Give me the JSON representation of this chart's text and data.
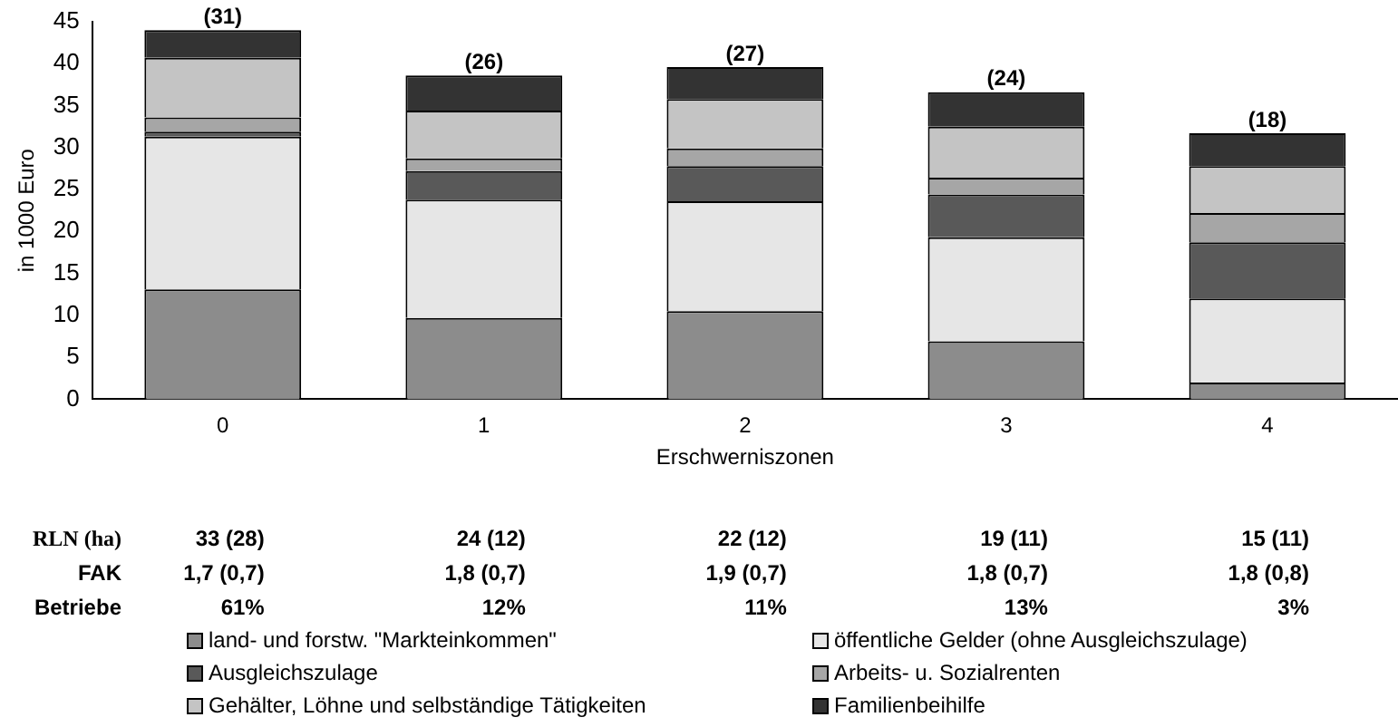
{
  "chart_data": {
    "type": "bar",
    "stacked": true,
    "xlabel": "Erschwerniszonen",
    "ylabel": "in 1000 Euro",
    "categories": [
      "0",
      "1",
      "2",
      "3",
      "4"
    ],
    "series": [
      {
        "name": "land- und forstw. \"Markteinkommen\"",
        "color": "#8c8c8c",
        "values": [
          13.1,
          9.7,
          10.5,
          6.9,
          2.0
        ]
      },
      {
        "name": "öffentliche Gelder (ohne Ausgleichszulage)",
        "color": "#e6e6e6",
        "values": [
          18.2,
          14.1,
          13.1,
          12.4,
          10.0
        ]
      },
      {
        "name": "Ausgleichszulage",
        "color": "#595959",
        "values": [
          0.6,
          3.4,
          4.2,
          5.1,
          6.7
        ]
      },
      {
        "name": "Arbeits- u. Sozialrenten",
        "color": "#a6a6a6",
        "values": [
          1.7,
          1.5,
          2.1,
          2.0,
          3.5
        ]
      },
      {
        "name": "Gehälter, Löhne und selbständige Tätigkeiten",
        "color": "#c4c4c4",
        "values": [
          7.1,
          5.7,
          5.9,
          6.1,
          5.6
        ]
      },
      {
        "name": "Familienbeihilfe",
        "color": "#333333",
        "values": [
          3.3,
          4.2,
          3.8,
          4.1,
          3.9
        ]
      }
    ],
    "ylim": [
      0,
      45
    ],
    "yticks": [
      0,
      5,
      10,
      15,
      20,
      25,
      30,
      35,
      40,
      45
    ],
    "grid": false,
    "legend": "bottom",
    "annotations": [
      {
        "text": "(31)",
        "x": "0",
        "y": 44.0
      },
      {
        "text": "(26)",
        "x": "1",
        "y": 38.6
      },
      {
        "text": "(27)",
        "x": "2",
        "y": 39.6
      },
      {
        "text": "(24)",
        "x": "3",
        "y": 36.6
      },
      {
        "text": "(18)",
        "x": "4",
        "y": 31.7
      },
      "RLN (ha)",
      "33 (28)",
      "24 (12)",
      "22 (12)",
      "19 (11)",
      "15 (11)",
      "FAK",
      "1,7 (0,7)",
      "1,8 (0,7)",
      "1,9 (0,7)",
      "1,8 (0,7)",
      "1,8 (0,8)",
      "Betriebe",
      "61%",
      "12%",
      "11%",
      "13%",
      "3%"
    ]
  }
}
